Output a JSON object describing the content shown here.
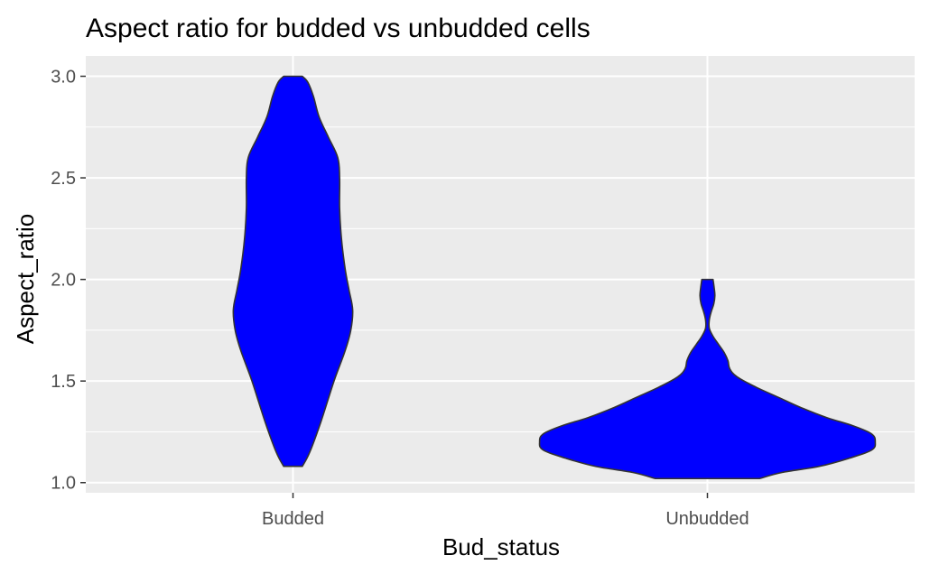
{
  "chart_data": {
    "type": "violin",
    "title": "Aspect ratio for budded vs unbudded cells",
    "xlabel": "Bud_status",
    "ylabel": "Aspect_ratio",
    "categories": [
      "Budded",
      "Unbudded"
    ],
    "ylim": [
      0.95,
      3.1
    ],
    "yticks": [
      1.0,
      1.5,
      2.0,
      2.5,
      3.0
    ],
    "ytick_labels": [
      "1.0",
      "1.5",
      "2.0",
      "2.5",
      "3.0"
    ],
    "grid": true,
    "legend": "none",
    "fill_color": "#0000ff",
    "outline_color": "#333333",
    "panel_color": "#ebebeb",
    "series": [
      {
        "category": "Budded",
        "min": 1.08,
        "max": 3.0,
        "density_profile": [
          [
            1.08,
            0.025
          ],
          [
            1.15,
            0.045
          ],
          [
            1.3,
            0.075
          ],
          [
            1.5,
            0.11
          ],
          [
            1.65,
            0.14
          ],
          [
            1.75,
            0.155
          ],
          [
            1.85,
            0.16
          ],
          [
            1.95,
            0.15
          ],
          [
            2.05,
            0.14
          ],
          [
            2.2,
            0.13
          ],
          [
            2.35,
            0.125
          ],
          [
            2.5,
            0.125
          ],
          [
            2.6,
            0.12
          ],
          [
            2.7,
            0.095
          ],
          [
            2.8,
            0.07
          ],
          [
            2.9,
            0.055
          ],
          [
            2.97,
            0.04
          ],
          [
            3.0,
            0.025
          ]
        ]
      },
      {
        "category": "Unbudded",
        "min": 1.02,
        "max": 2.0,
        "density_profile": [
          [
            1.02,
            0.14
          ],
          [
            1.05,
            0.2
          ],
          [
            1.08,
            0.3
          ],
          [
            1.12,
            0.38
          ],
          [
            1.16,
            0.44
          ],
          [
            1.2,
            0.45
          ],
          [
            1.24,
            0.44
          ],
          [
            1.28,
            0.39
          ],
          [
            1.32,
            0.32
          ],
          [
            1.37,
            0.25
          ],
          [
            1.42,
            0.19
          ],
          [
            1.47,
            0.13
          ],
          [
            1.52,
            0.08
          ],
          [
            1.56,
            0.06
          ],
          [
            1.6,
            0.055
          ],
          [
            1.64,
            0.045
          ],
          [
            1.68,
            0.03
          ],
          [
            1.72,
            0.015
          ],
          [
            1.76,
            0.005
          ],
          [
            1.8,
            0.005
          ],
          [
            1.84,
            0.01
          ],
          [
            1.88,
            0.017
          ],
          [
            1.92,
            0.02
          ],
          [
            1.96,
            0.018
          ],
          [
            2.0,
            0.015
          ]
        ]
      }
    ]
  }
}
